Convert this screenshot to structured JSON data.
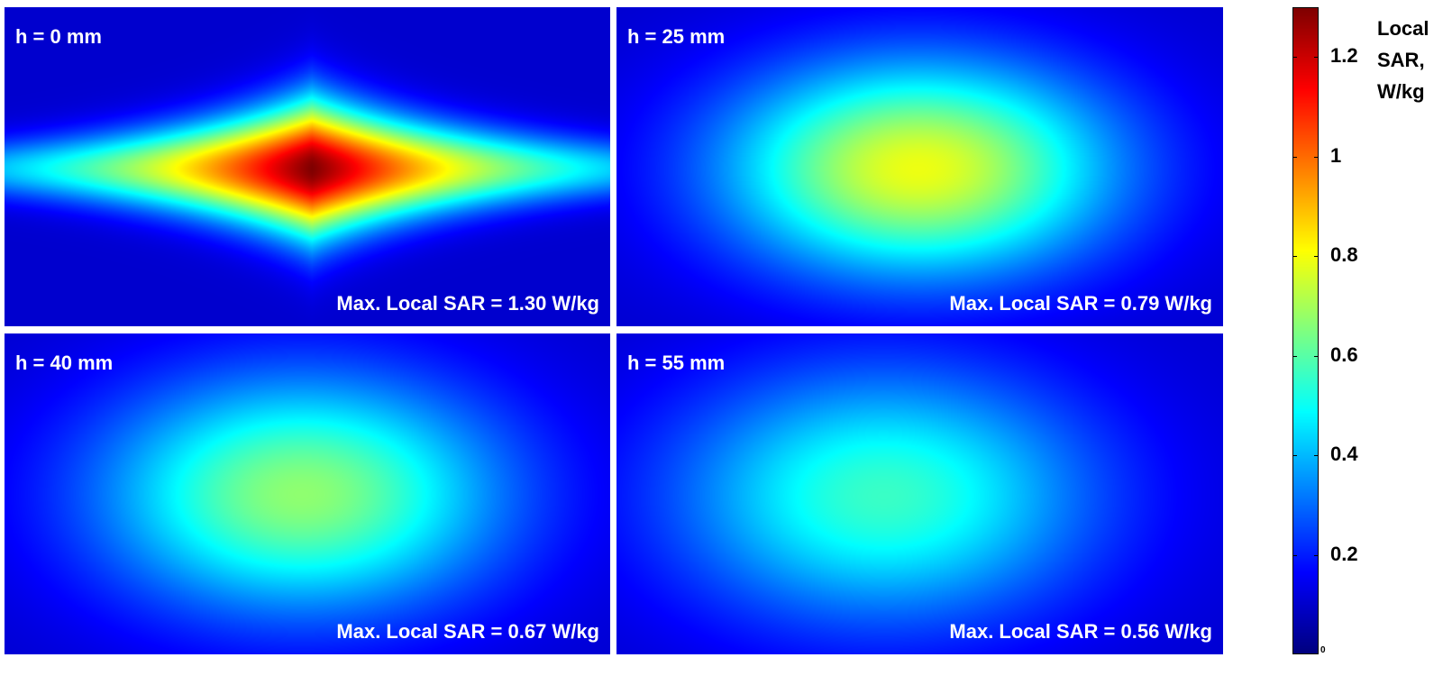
{
  "chart_data": {
    "type": "heatmap",
    "colormap": "jet",
    "quantity": "Local SAR",
    "units": "W/kg",
    "colorbar": {
      "title_lines": [
        "Local",
        "SAR,",
        "W/kg"
      ],
      "range": [
        0,
        1.3
      ],
      "ticks": [
        1.2,
        1,
        0.8,
        0.6,
        0.4,
        0.2
      ],
      "tick_labels": [
        "1.2",
        "1",
        "0.8",
        "0.6",
        "0.4",
        "0.2"
      ],
      "min_label": "0"
    },
    "panels": [
      {
        "label": "h = 0 mm",
        "height_mm": 0,
        "max_local_sar": 1.3,
        "max_label": "Max. Local SAR = 1.30 W/kg"
      },
      {
        "label": "h = 25 mm",
        "height_mm": 25,
        "max_local_sar": 0.79,
        "max_label": "Max. Local SAR = 0.79 W/kg"
      },
      {
        "label": "h = 40 mm",
        "height_mm": 40,
        "max_local_sar": 0.67,
        "max_label": "Max. Local SAR = 0.67 W/kg"
      },
      {
        "label": "h = 55 mm",
        "height_mm": 55,
        "max_local_sar": 0.56,
        "max_label": "Max. Local SAR = 0.56 W/kg"
      }
    ]
  }
}
